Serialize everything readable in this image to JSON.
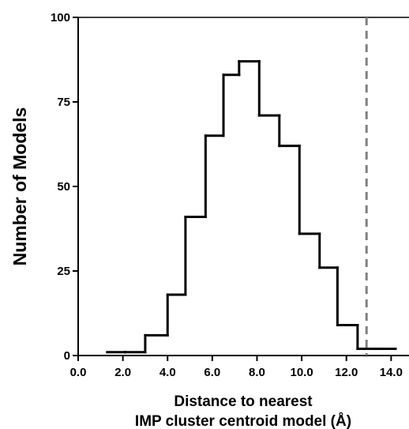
{
  "chart_data": {
    "type": "histogram",
    "title": "",
    "xlabel_line1": "Distance to nearest",
    "xlabel_line2": "IMP cluster centroid model (Å)",
    "ylabel": "Number of Models",
    "xlim": [
      0.0,
      14.8
    ],
    "ylim": [
      0,
      100
    ],
    "x_ticks": [
      0.0,
      2.0,
      4.0,
      6.0,
      8.0,
      10.0,
      12.0,
      14.0
    ],
    "x_tick_labels": [
      "0.0",
      "2.0",
      "4.0",
      "6.0",
      "8.0",
      "10.0",
      "12.0",
      "14.0"
    ],
    "y_ticks": [
      0,
      25,
      50,
      75,
      100
    ],
    "y_tick_labels": [
      "0",
      "25",
      "50",
      "75",
      "100"
    ],
    "bin_edges": [
      1.3,
      2.1,
      3.0,
      4.0,
      4.8,
      5.7,
      6.5,
      7.2,
      8.1,
      9.0,
      9.9,
      10.8,
      11.6,
      12.5,
      13.3,
      14.2
    ],
    "counts": [
      1,
      1,
      6,
      18,
      41,
      65,
      83,
      87,
      71,
      62,
      36,
      26,
      9,
      2,
      2
    ],
    "threshold_line": {
      "x": 12.9,
      "style": "dashed",
      "color": "#808080"
    },
    "series_color": "#000000",
    "grid": false
  }
}
